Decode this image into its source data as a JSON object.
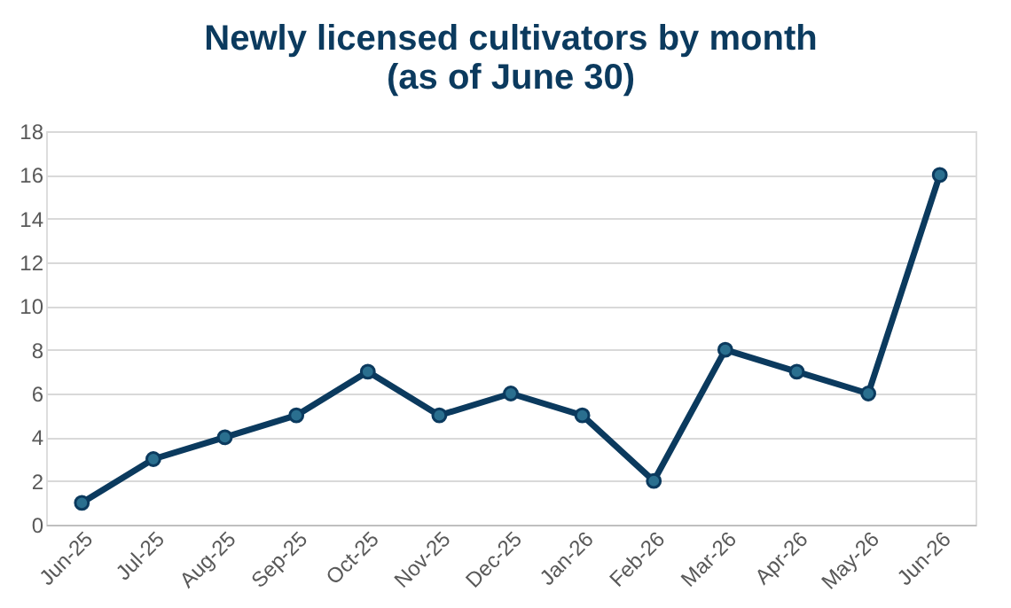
{
  "chart_data": {
    "type": "line",
    "title": "Newly licensed cultivators by month\n(as of June 30)",
    "categories": [
      "Jun-25",
      "Jul-25",
      "Aug-25",
      "Sep-25",
      "Oct-25",
      "Nov-25",
      "Dec-25",
      "Jan-26",
      "Feb-26",
      "Mar-26",
      "Apr-26",
      "May-26",
      "Jun-26"
    ],
    "series": [
      {
        "color": "#0b3a5e",
        "values": [
          1,
          3,
          4,
          5,
          7,
          5,
          6,
          5,
          2,
          8,
          7,
          6,
          16
        ]
      }
    ],
    "ylim": [
      0,
      18
    ],
    "yticks": [
      0,
      2,
      4,
      6,
      8,
      10,
      12,
      14,
      16,
      18
    ],
    "grid": "y",
    "marker": "circle",
    "line_style": "solid"
  }
}
